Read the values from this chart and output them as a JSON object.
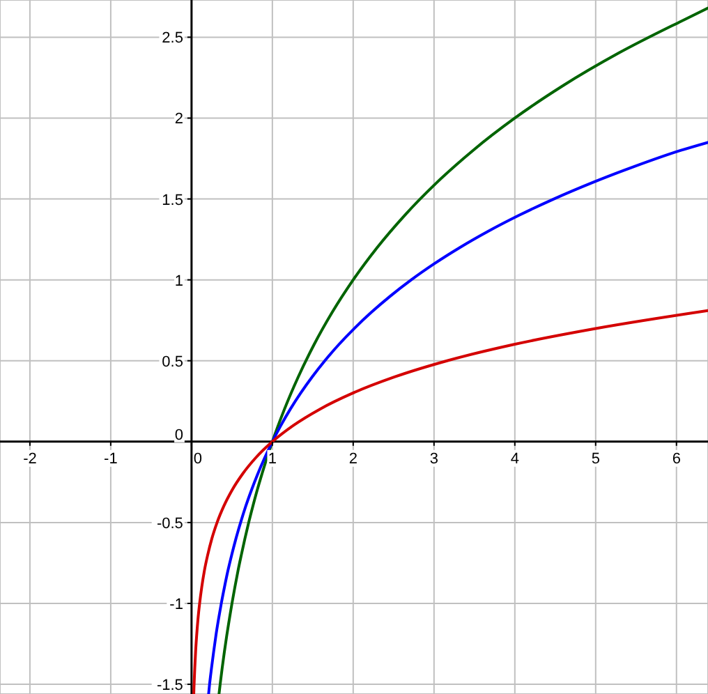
{
  "chart_data": {
    "type": "line",
    "xlim": [
      -2.37,
      6.39
    ],
    "ylim": [
      -1.56,
      2.73
    ],
    "xticks": [
      -2,
      -1,
      0,
      1,
      2,
      3,
      4,
      5,
      6
    ],
    "yticks": [
      -1.5,
      -1,
      -0.5,
      0,
      0.5,
      1,
      1.5,
      2,
      2.5
    ],
    "grid": true,
    "series": [
      {
        "color": "#006400",
        "x": [
          0.34,
          0.354,
          0.379,
          0.406,
          0.435,
          0.467,
          0.5,
          0.536,
          0.574,
          0.616,
          0.66,
          0.707,
          0.758,
          0.812,
          0.871,
          0.933,
          1,
          1.149,
          1.32,
          1.516,
          1.741,
          2,
          2.297,
          2.639,
          3.031,
          3.482,
          4,
          4.595,
          5.278,
          6.063,
          6.39
        ],
        "values": [
          -1.56,
          -1.5,
          -1.4,
          -1.3,
          -1.2,
          -1.1,
          -1,
          -0.9,
          -0.8,
          -0.7,
          -0.6,
          -0.5,
          -0.4,
          -0.3,
          -0.2,
          -0.1,
          0,
          0.2,
          0.4,
          0.6,
          0.8,
          1,
          1.2,
          1.4,
          1.6,
          1.8,
          2,
          2.2,
          2.4,
          2.6,
          2.68
        ]
      },
      {
        "color": "#0000ff",
        "x": [
          0.211,
          0.223,
          0.247,
          0.273,
          0.301,
          0.333,
          0.368,
          0.407,
          0.449,
          0.497,
          0.549,
          0.607,
          0.67,
          0.741,
          0.819,
          0.905,
          1,
          1.105,
          1.221,
          1.35,
          1.492,
          1.649,
          1.822,
          2.014,
          2.226,
          2.46,
          2.718,
          3.004,
          3.32,
          3.669,
          4.055,
          4.482,
          4.953,
          5.474,
          6.05,
          6.39
        ],
        "values": [
          -1.56,
          -1.5,
          -1.4,
          -1.3,
          -1.2,
          -1.1,
          -1,
          -0.9,
          -0.8,
          -0.7,
          -0.6,
          -0.5,
          -0.4,
          -0.3,
          -0.2,
          -0.1,
          0,
          0.1,
          0.2,
          0.3,
          0.4,
          0.5,
          0.6,
          0.7,
          0.8,
          0.9,
          1,
          1.1,
          1.2,
          1.3,
          1.4,
          1.5,
          1.6,
          1.7,
          1.8,
          1.85
        ]
      },
      {
        "color": "#d40000",
        "x": [
          0.0275,
          0.03,
          0.035,
          0.04,
          0.05,
          0.063,
          0.079,
          0.1,
          0.126,
          0.158,
          0.2,
          0.251,
          0.316,
          0.398,
          0.501,
          0.631,
          0.794,
          1,
          1.259,
          1.585,
          1.995,
          2.512,
          3.162,
          3.981,
          5.012,
          6.39
        ],
        "values": [
          -1.56,
          -1.52,
          -1.46,
          -1.4,
          -1.3,
          -1.2,
          -1.1,
          -1,
          -0.9,
          -0.8,
          -0.7,
          -0.6,
          -0.5,
          -0.4,
          -0.3,
          -0.2,
          -0.1,
          0,
          0.1,
          0.2,
          0.3,
          0.4,
          0.5,
          0.6,
          0.7,
          0.81
        ]
      }
    ]
  }
}
